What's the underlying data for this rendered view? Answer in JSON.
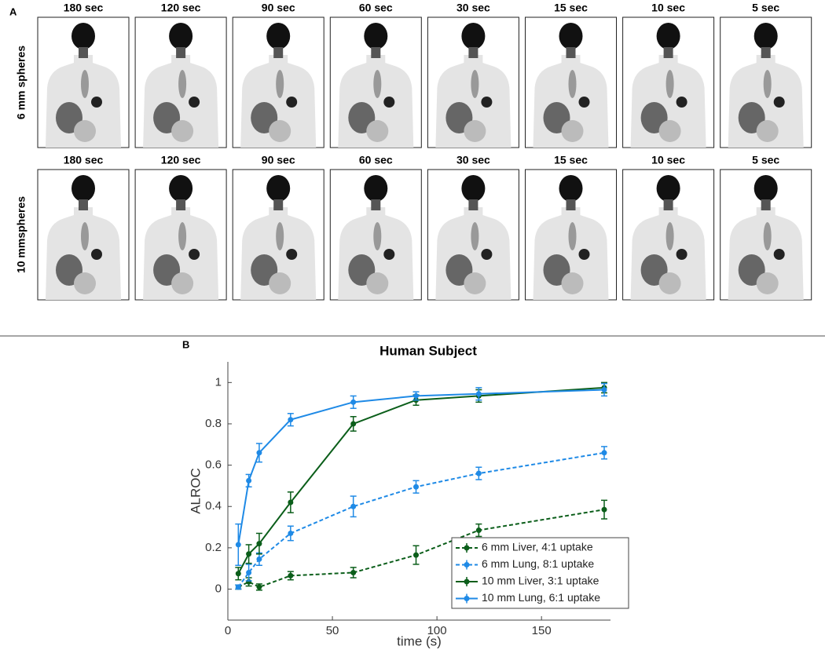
{
  "panel_a": {
    "label": "A",
    "columns": [
      "180 sec",
      "120 sec",
      "90 sec",
      "60 sec",
      "30 sec",
      "15 sec",
      "10 sec",
      "5 sec"
    ],
    "rows": [
      "6 mm spheres",
      "10 mmspheres"
    ]
  },
  "chart_data": {
    "type": "line",
    "panel_label": "B",
    "title": "Human Subject",
    "x_label": "time (s)",
    "y_label": "ALROC",
    "x": [
      5,
      10,
      15,
      30,
      60,
      90,
      120,
      180
    ],
    "xlim": [
      0,
      183
    ],
    "xticks": [
      0,
      50,
      100,
      150
    ],
    "ylim": [
      -0.15,
      1.1
    ],
    "yticks": [
      0,
      0.2,
      0.4,
      0.6,
      0.8,
      1
    ],
    "legend": "lower right",
    "series": [
      {
        "name": "6 mm Liver, 4:1 uptake",
        "color": "#0b5e1a",
        "dash": true,
        "values": [
          0.01,
          0.035,
          0.01,
          0.065,
          0.08,
          0.165,
          0.285,
          0.385
        ],
        "errors": [
          0.01,
          0.02,
          0.015,
          0.02,
          0.025,
          0.045,
          0.03,
          0.045
        ]
      },
      {
        "name": "6 mm Lung, 8:1 uptake",
        "color": "#1f8ae6",
        "dash": true,
        "values": [
          0.01,
          0.08,
          0.145,
          0.27,
          0.4,
          0.495,
          0.56,
          0.66
        ],
        "errors": [
          0.01,
          0.04,
          0.03,
          0.035,
          0.05,
          0.03,
          0.03,
          0.03
        ]
      },
      {
        "name": "10 mm Liver, 3:1 uptake",
        "color": "#0b5e1a",
        "dash": false,
        "values": [
          0.075,
          0.17,
          0.22,
          0.42,
          0.8,
          0.915,
          0.935,
          0.975
        ],
        "errors": [
          0.03,
          0.045,
          0.05,
          0.05,
          0.035,
          0.025,
          0.03,
          0.025
        ]
      },
      {
        "name": "10 mm Lung, 6:1 uptake",
        "color": "#1f8ae6",
        "dash": false,
        "values": [
          0.215,
          0.525,
          0.66,
          0.82,
          0.905,
          0.935,
          0.945,
          0.965
        ],
        "errors": [
          0.1,
          0.03,
          0.045,
          0.03,
          0.03,
          0.02,
          0.03,
          0.03
        ]
      }
    ]
  }
}
